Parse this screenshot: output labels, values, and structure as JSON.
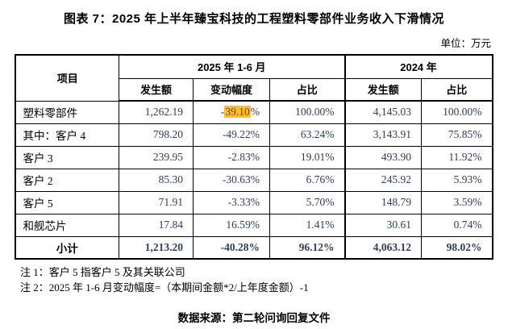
{
  "title": "图表 7：2025 年上半年臻宝科技的工程塑料零部件业务收入下滑情况",
  "unit_label": "单位：万元",
  "colors": {
    "highlight_bg": "#FBC12D",
    "highlight_text": "#8B3A00",
    "number_text": "#2C3E58",
    "border": "#000000"
  },
  "table": {
    "headers": {
      "item": "项目",
      "group_2025": "2025 年 1-6 月",
      "group_2024": "2024 年",
      "sub_2025": [
        "发生额",
        "变动幅度",
        "占比"
      ],
      "sub_2024": [
        "发生额",
        "占比"
      ]
    },
    "rows": [
      {
        "label": "塑料零部件",
        "amount_2025": "1,262.19",
        "change_2025": {
          "pre": "-",
          "highlight": "39.10",
          "post": "%"
        },
        "share_2025": "100.00%",
        "amount_2024": "4,145.03",
        "share_2024": "100.00%"
      },
      {
        "label": "其中：客户 4",
        "amount_2025": "798.20",
        "change_2025": "-49.22%",
        "share_2025": "63.24%",
        "amount_2024": "3,143.91",
        "share_2024": "75.85%"
      },
      {
        "label": "客户 3",
        "amount_2025": "239.95",
        "change_2025": "-2.83%",
        "share_2025": "19.01%",
        "amount_2024": "493.90",
        "share_2024": "11.92%"
      },
      {
        "label": "客户 2",
        "amount_2025": "85.30",
        "change_2025": "-30.63%",
        "share_2025": "6.76%",
        "amount_2024": "245.92",
        "share_2024": "5.93%"
      },
      {
        "label": "客户 5",
        "amount_2025": "71.91",
        "change_2025": "-3.33%",
        "share_2025": "5.70%",
        "amount_2024": "148.79",
        "share_2024": "3.59%"
      },
      {
        "label": "和舰芯片",
        "amount_2025": "17.84",
        "change_2025": "16.59%",
        "share_2025": "1.41%",
        "amount_2024": "30.61",
        "share_2024": "0.74%"
      },
      {
        "label": "小计",
        "bold": true,
        "center_label": true,
        "amount_2025": "1,213.20",
        "change_2025": "-40.28%",
        "share_2025": "96.12%",
        "amount_2024": "4,063.12",
        "share_2024": "98.02%"
      }
    ]
  },
  "notes": [
    "注 1：客户 5 指客户 5 及其关联公司",
    "注 2：2025 年 1-6 月变动幅度=（本期间金额*2/上年度金额）-1"
  ],
  "source": "数据来源：第二轮问询回复文件"
}
